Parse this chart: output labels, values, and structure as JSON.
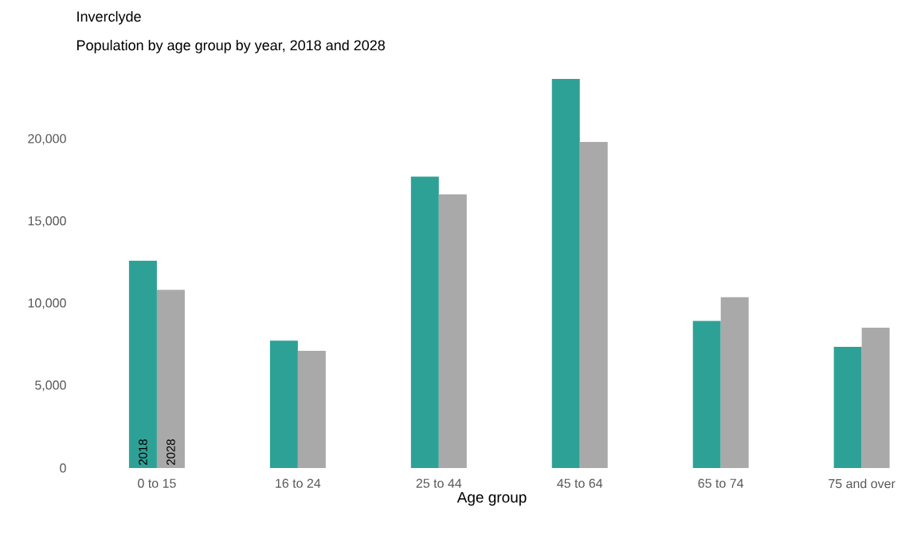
{
  "chart_data": {
    "type": "bar",
    "title": "Inverclyde",
    "subtitle": "Population by age group by year, 2018 and 2028",
    "xlabel": "Age group",
    "categories": [
      "0 to 15",
      "16 to 24",
      "25 to 44",
      "45 to 64",
      "65 to 74",
      "75 and over"
    ],
    "series": [
      {
        "name": "2018",
        "color": "#2ea197",
        "values": [
          12610,
          7750,
          17730,
          23680,
          8950,
          7370
        ]
      },
      {
        "name": "2028",
        "color": "#a9a9a9",
        "values": [
          10840,
          7130,
          16650,
          19840,
          10390,
          8540
        ]
      }
    ],
    "yticks": [
      0,
      {
        "value": 5000,
        "label": "5,000"
      },
      {
        "value": 10000,
        "label": "10,000"
      },
      {
        "value": 15000,
        "label": "15,000"
      },
      {
        "value": 20000,
        "label": "20,000"
      }
    ],
    "ylim": [
      0,
      23680
    ],
    "grid": false,
    "legend": false
  }
}
